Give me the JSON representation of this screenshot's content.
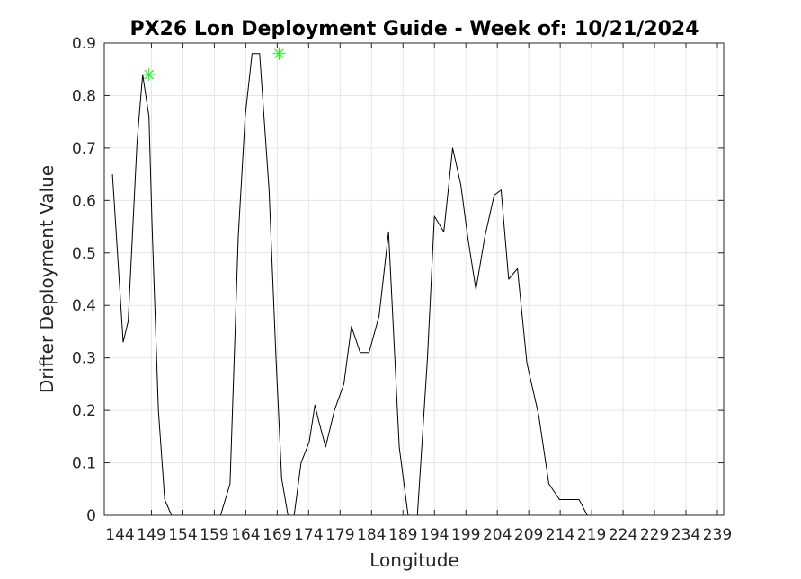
{
  "chart_data": {
    "type": "line",
    "title": "PX26 Lon Deployment Guide - Week of: 10/21/2024",
    "xlabel": "Longitude",
    "ylabel": "Drifter Deployment Value",
    "xlim": [
      141.5,
      240
    ],
    "ylim": [
      0,
      0.9
    ],
    "x_ticks": [
      144,
      149,
      154,
      159,
      164,
      169,
      174,
      179,
      184,
      189,
      194,
      199,
      204,
      209,
      214,
      219,
      224,
      229,
      234,
      239
    ],
    "y_ticks": [
      0,
      0.1,
      0.2,
      0.3,
      0.4,
      0.5,
      0.6,
      0.7,
      0.8,
      0.9
    ],
    "y_tick_labels": [
      "0",
      "0.1",
      "0.2",
      "0.3",
      "0.4",
      "0.5",
      "0.6",
      "0.7",
      "0.8",
      "0.9"
    ],
    "grid": true,
    "series": [
      {
        "color": "#000000",
        "x": [
          142.8,
          144.5,
          145.3,
          146.7,
          147.6,
          148.6,
          149.1,
          150.1,
          151.1,
          152.2,
          153.5,
          154.4,
          155.9,
          157.2,
          158.6,
          160,
          161.5,
          162.8,
          163.9,
          165,
          166.2,
          167.7,
          168.8,
          169.7,
          170.7,
          171.7,
          172.8,
          174.1,
          175,
          175.6,
          176.7,
          178.1,
          179.6,
          180.8,
          182.2,
          183.6,
          185.2,
          186.7,
          188.4,
          189.8,
          191.3,
          192.9,
          194,
          195.5,
          196.9,
          198.2,
          199.3,
          200.6,
          202,
          203.5,
          204.6,
          205.8,
          207.2,
          208.7,
          210.6,
          212.2,
          213.9,
          215.5,
          217,
          218.3,
          219.3,
          220.4,
          222,
          223.4,
          224.9,
          226.7,
          228.4,
          229.6,
          231,
          233,
          235,
          237
        ],
        "y": [
          0.65,
          0.33,
          0.37,
          0.71,
          0.84,
          0.76,
          0.55,
          0.2,
          0.03,
          0,
          0,
          0,
          0,
          0,
          0,
          0,
          0.06,
          0.53,
          0.76,
          0.88,
          0.88,
          0.62,
          0.3,
          0.07,
          0,
          0,
          0.1,
          0.14,
          0.21,
          0.18,
          0.13,
          0.2,
          0.25,
          0.36,
          0.31,
          0.31,
          0.38,
          0.54,
          0.13,
          0,
          0,
          0.3,
          0.57,
          0.54,
          0.7,
          0.63,
          0.53,
          0.43,
          0.53,
          0.61,
          0.62,
          0.45,
          0.47,
          0.29,
          0.19,
          0.06,
          0.03,
          0.03,
          0.03,
          0,
          0,
          0,
          0,
          0,
          0,
          0,
          0,
          0,
          0,
          0,
          0,
          0
        ]
      }
    ],
    "markers": [
      {
        "x": 148.6,
        "y": 0.84,
        "color": "#00ff00",
        "symbol": "asterisk"
      },
      {
        "x": 169.3,
        "y": 0.88,
        "color": "#00ff00",
        "symbol": "asterisk"
      }
    ],
    "colors": {
      "grid": "#e6e6e6",
      "axes": "#262626",
      "line": "#000000",
      "marker": "#00ff00"
    }
  }
}
